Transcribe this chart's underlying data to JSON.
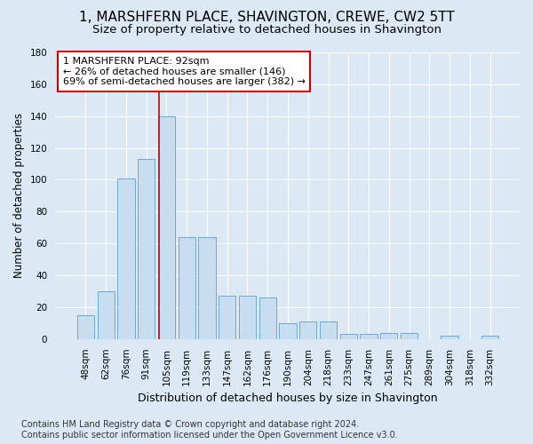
{
  "title": "1, MARSHFERN PLACE, SHAVINGTON, CREWE, CW2 5TT",
  "subtitle": "Size of property relative to detached houses in Shavington",
  "xlabel": "Distribution of detached houses by size in Shavington",
  "ylabel": "Number of detached properties",
  "bar_labels": [
    "48sqm",
    "62sqm",
    "76sqm",
    "91sqm",
    "105sqm",
    "119sqm",
    "133sqm",
    "147sqm",
    "162sqm",
    "176sqm",
    "190sqm",
    "204sqm",
    "218sqm",
    "233sqm",
    "247sqm",
    "261sqm",
    "275sqm",
    "289sqm",
    "304sqm",
    "318sqm",
    "332sqm"
  ],
  "bar_values": [
    15,
    30,
    101,
    113,
    140,
    64,
    64,
    27,
    27,
    26,
    10,
    11,
    11,
    3,
    3,
    4,
    4,
    0,
    2,
    0,
    2
  ],
  "bar_color": "#c9ddf0",
  "bar_edge_color": "#6aaad4",
  "annotation_text": "1 MARSHFERN PLACE: 92sqm\n← 26% of detached houses are smaller (146)\n69% of semi-detached houses are larger (382) →",
  "vline_x_index": 3.62,
  "vline_color": "#cc0000",
  "box_color": "#ffffff",
  "box_edge_color": "#cc0000",
  "ylim": [
    0,
    180
  ],
  "yticks": [
    0,
    20,
    40,
    60,
    80,
    100,
    120,
    140,
    160,
    180
  ],
  "footer_line1": "Contains HM Land Registry data © Crown copyright and database right 2024.",
  "footer_line2": "Contains public sector information licensed under the Open Government Licence v3.0.",
  "background_color": "#dce9f5",
  "grid_color": "#ffffff",
  "title_fontsize": 11,
  "subtitle_fontsize": 9.5,
  "ylabel_fontsize": 8.5,
  "xlabel_fontsize": 9,
  "footer_fontsize": 7,
  "annotation_fontsize": 8,
  "tick_fontsize": 7.5
}
